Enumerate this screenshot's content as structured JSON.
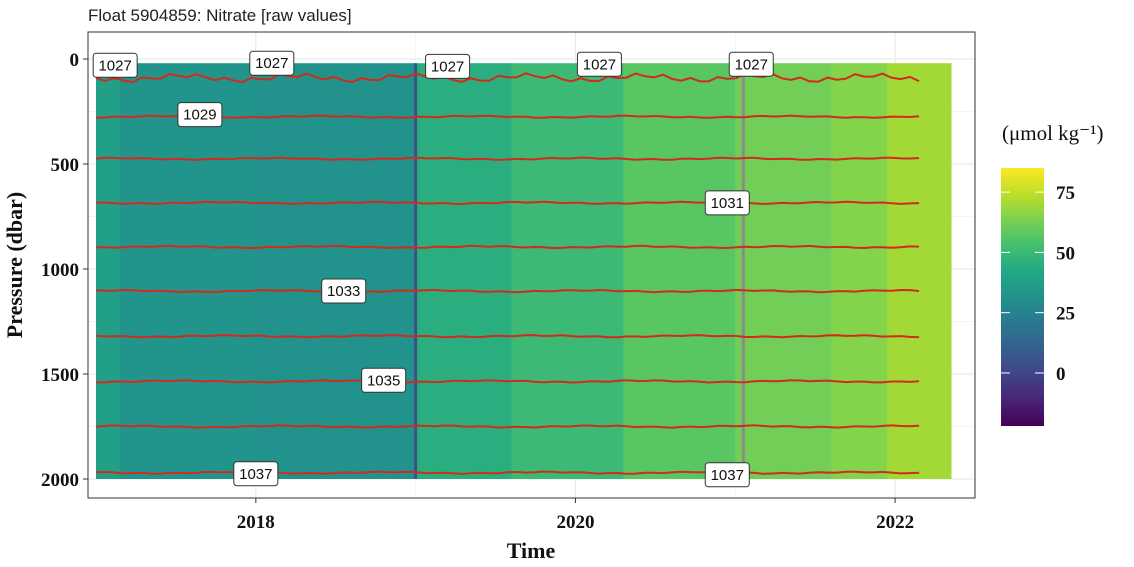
{
  "chart_data": {
    "type": "heatmap",
    "title": "Float 5904859: Nitrate [raw values]",
    "xlabel": "Time",
    "ylabel": "Pressure (dbar)",
    "xlim": [
      2016.95,
      2022.5
    ],
    "ylim": [
      2000,
      0
    ],
    "x_ticks": [
      2018,
      2020,
      2022
    ],
    "x_tick_labels": [
      "2018",
      "2020",
      "2022"
    ],
    "y_ticks": [
      0,
      500,
      1000,
      1500,
      2000
    ],
    "y_tick_labels": [
      "0",
      "500",
      "1000",
      "1500",
      "2000"
    ],
    "grid": true,
    "colorbar": {
      "title": "(μmol kg⁻¹)",
      "ticks": [
        0,
        25,
        50,
        75
      ],
      "tick_labels": [
        "0",
        "25",
        "50",
        "75"
      ],
      "range": [
        -22,
        85
      ],
      "colormap": "viridis",
      "placement": "right"
    },
    "field": {
      "x_range": [
        2017.0,
        2022.35
      ],
      "bands": [
        {
          "x_start": 2017.0,
          "x_end": 2017.15,
          "value": 38
        },
        {
          "x_start": 2017.15,
          "x_end": 2018.0,
          "value": 33
        },
        {
          "x_start": 2018.0,
          "x_end": 2019.0,
          "value": 32
        },
        {
          "x_start": 2019.0,
          "x_end": 2019.6,
          "value": 45
        },
        {
          "x_start": 2019.6,
          "x_end": 2020.3,
          "value": 50
        },
        {
          "x_start": 2020.3,
          "x_end": 2021.0,
          "value": 57
        },
        {
          "x_start": 2021.0,
          "x_end": 2021.6,
          "value": 62
        },
        {
          "x_start": 2021.6,
          "x_end": 2021.95,
          "value": 65
        },
        {
          "x_start": 2021.95,
          "x_end": 2022.35,
          "value": 70
        }
      ],
      "highlight_columns": [
        {
          "x": 2019.0,
          "value": 5
        },
        {
          "x": 2021.05,
          "color": "#8b8b8b"
        }
      ],
      "top_boundary_dbar": 20
    },
    "contour_values": [
      1027,
      1029,
      1031,
      1033,
      1035,
      1037
    ],
    "isopycnals": [
      {
        "pressure": 90
      },
      {
        "pressure": 275
      },
      {
        "pressure": 475
      },
      {
        "pressure": 685
      },
      {
        "pressure": 895
      },
      {
        "pressure": 1105
      },
      {
        "pressure": 1320
      },
      {
        "pressure": 1535
      },
      {
        "pressure": 1750
      },
      {
        "pressure": 1970
      }
    ],
    "contour_labels": [
      {
        "text": "1027",
        "x": 2017.12,
        "pressure": 30
      },
      {
        "text": "1027",
        "x": 2018.1,
        "pressure": 20
      },
      {
        "text": "1027",
        "x": 2019.2,
        "pressure": 35
      },
      {
        "text": "1027",
        "x": 2020.15,
        "pressure": 25
      },
      {
        "text": "1027",
        "x": 2021.1,
        "pressure": 25
      },
      {
        "text": "1029",
        "x": 2017.65,
        "pressure": 265
      },
      {
        "text": "1031",
        "x": 2020.95,
        "pressure": 685
      },
      {
        "text": "1033",
        "x": 2018.55,
        "pressure": 1105
      },
      {
        "text": "1035",
        "x": 2018.8,
        "pressure": 1530
      },
      {
        "text": "1037",
        "x": 2018.0,
        "pressure": 1975
      },
      {
        "text": "1037",
        "x": 2020.95,
        "pressure": 1980
      }
    ]
  }
}
